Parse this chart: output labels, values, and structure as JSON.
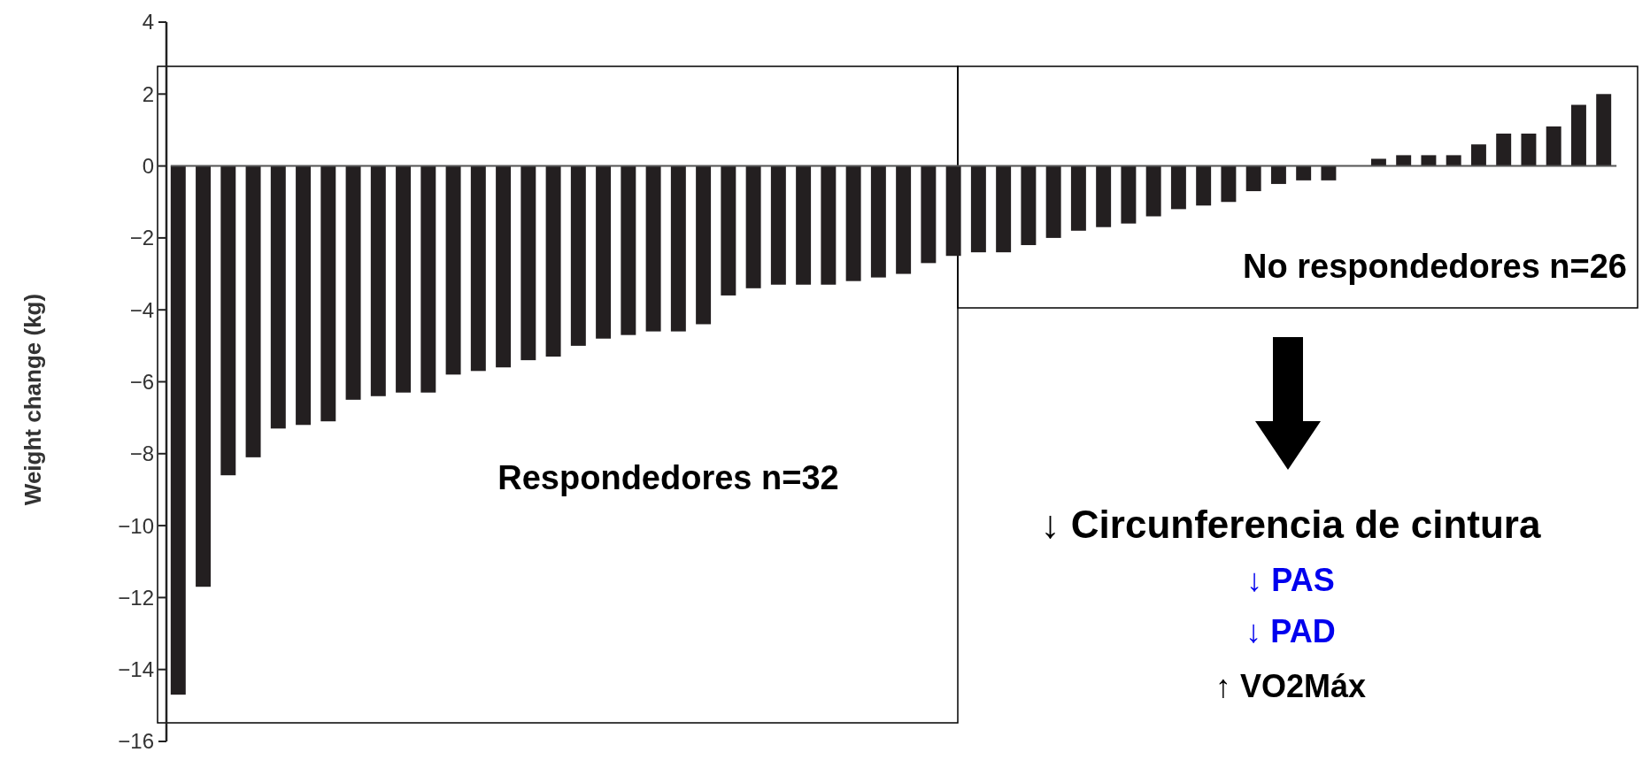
{
  "chart_data": {
    "type": "bar",
    "ylabel": "Weight change (kg)",
    "categories": [
      null,
      null,
      null,
      null,
      null,
      null,
      null,
      null,
      null,
      null,
      null,
      null,
      null,
      null,
      null,
      null,
      null,
      null,
      null,
      null,
      null,
      null,
      null,
      null,
      null,
      null,
      null,
      null,
      null,
      null,
      null,
      null,
      null,
      null,
      null,
      null,
      null,
      null,
      null,
      null,
      null,
      null,
      null,
      null,
      null,
      null,
      null,
      null,
      null,
      null,
      null,
      null,
      null,
      null,
      null,
      null,
      null,
      null
    ],
    "values": [
      -14.7,
      -11.7,
      -8.6,
      -8.1,
      -7.3,
      -7.2,
      -7.1,
      -6.5,
      -6.4,
      -6.3,
      -6.3,
      -5.8,
      -5.7,
      -5.6,
      -5.4,
      -5.3,
      -5.0,
      -4.8,
      -4.7,
      -4.6,
      -4.6,
      -4.4,
      -3.6,
      -3.4,
      -3.3,
      -3.3,
      -3.3,
      -3.2,
      -3.1,
      -3.0,
      -2.7,
      -2.5,
      -2.4,
      -2.4,
      -2.2,
      -2.0,
      -1.8,
      -1.7,
      -1.6,
      -1.4,
      -1.2,
      -1.1,
      -1.0,
      -0.7,
      -0.5,
      -0.4,
      -0.4,
      0,
      0.2,
      0.3,
      0.3,
      0.3,
      0.6,
      0.9,
      0.9,
      1.1,
      1.7,
      2.0
    ],
    "color": "#231f20",
    "ylim": [
      -16,
      4
    ],
    "yticks": [
      {
        "value": -16,
        "label": "−16"
      },
      {
        "value": -14,
        "label": "−14"
      },
      {
        "value": -12,
        "label": "−12"
      },
      {
        "value": -10,
        "label": "−10"
      },
      {
        "value": -8,
        "label": "−8"
      },
      {
        "value": -6,
        "label": "−6"
      },
      {
        "value": -4,
        "label": "−4"
      },
      {
        "value": -2,
        "label": "−2"
      },
      0,
      2,
      4
    ],
    "annotations": [
      "Respondedores n=32",
      "No respondedores n=26",
      "↓ Circunferencia de cintura",
      "↓ PAS",
      "↓ PAD",
      "↑ VO2Máx"
    ]
  }
}
